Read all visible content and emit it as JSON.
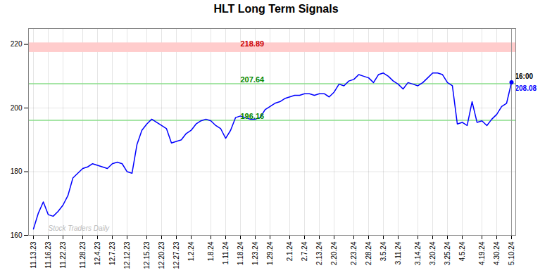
{
  "chart_data": {
    "type": "line",
    "title": "HLT Long Term Signals",
    "categories": [
      "11.13.23",
      null,
      null,
      "11.16.23",
      null,
      null,
      "11.22.23",
      null,
      null,
      null,
      "11.28.23",
      null,
      null,
      "12.4.23",
      null,
      null,
      "12.7.23",
      null,
      null,
      "12.12.23",
      null,
      null,
      null,
      "12.15.23",
      null,
      null,
      "12.20.23",
      null,
      null,
      "12.27.23",
      null,
      null,
      "1.2.24",
      null,
      null,
      null,
      "1.8.24",
      null,
      null,
      "1.11.24",
      null,
      null,
      "1.18.24",
      null,
      null,
      "1.23.24",
      null,
      null,
      "1.29.24",
      null,
      null,
      null,
      "2.1.24",
      null,
      null,
      "2.7.24",
      null,
      null,
      "2.13.24",
      null,
      null,
      "2.20.24",
      null,
      null,
      null,
      "2.23.24",
      null,
      null,
      "2.28.24",
      null,
      null,
      "3.5.24",
      null,
      null,
      "3.11.24",
      null,
      null,
      null,
      "3.14.24",
      null,
      null,
      "3.20.24",
      null,
      null,
      "3.25.24",
      null,
      null,
      "4.5.24",
      null,
      null,
      null,
      "4.19.24",
      null,
      null,
      "4.30.24",
      null,
      null,
      "5.10.24"
    ],
    "values": [
      162.0,
      167.0,
      170.5,
      166.5,
      166.0,
      167.5,
      169.5,
      172.5,
      178.0,
      179.5,
      181.0,
      181.5,
      182.5,
      182.0,
      181.5,
      181.0,
      182.5,
      183.0,
      182.5,
      180.0,
      179.5,
      188.5,
      193.0,
      195.0,
      196.5,
      195.5,
      194.5,
      193.5,
      189.0,
      189.5,
      190.0,
      192.0,
      193.0,
      195.0,
      196.0,
      196.5,
      196.0,
      194.5,
      193.5,
      190.5,
      193.0,
      197.0,
      197.5,
      197.0,
      196.5,
      196.5,
      197.0,
      199.5,
      200.5,
      201.5,
      202.0,
      203.0,
      203.5,
      204.0,
      204.0,
      204.5,
      204.5,
      204.0,
      204.5,
      204.5,
      203.5,
      205.0,
      207.5,
      207.0,
      208.5,
      209.0,
      210.5,
      210.0,
      209.5,
      208.0,
      210.5,
      211.0,
      210.0,
      208.5,
      207.5,
      206.0,
      208.0,
      207.5,
      207.0,
      208.0,
      209.5,
      211.0,
      211.0,
      210.5,
      208.0,
      207.0,
      195.0,
      195.5,
      194.5,
      202.0,
      195.5,
      196.0,
      194.5,
      196.5,
      198.0,
      200.5,
      201.5,
      208.08
    ],
    "color": "blue",
    "ylim": [
      160,
      225
    ],
    "yticks": [
      160,
      180,
      200,
      220
    ],
    "grid": true,
    "bands": [
      {
        "y1": 217.5,
        "y2": 220.5,
        "color": "#ffcccc"
      }
    ],
    "hlines": [
      {
        "y": 207.64,
        "color": "#88dd88"
      },
      {
        "y": 196.16,
        "color": "#88dd88"
      }
    ],
    "vlines": [
      {
        "x": "5.10.24",
        "color": "#999999"
      }
    ],
    "annotations": [
      {
        "text": "218.89",
        "x": "1.18.24",
        "y": 218.89,
        "color": "#cc0000"
      },
      {
        "text": "207.64",
        "x": "1.18.24",
        "y": 207.64,
        "color": "#008800"
      },
      {
        "text": "196.16",
        "x": "1.18.24",
        "y": 196.16,
        "color": "#008800"
      },
      {
        "text": "Stock Traders Daily",
        "x": "11.16.23",
        "y": 161,
        "color": "#bbbbbb"
      }
    ],
    "end_labels": [
      {
        "text": "16:00",
        "color": "black"
      },
      {
        "text": "208.08",
        "color": "blue"
      }
    ]
  }
}
